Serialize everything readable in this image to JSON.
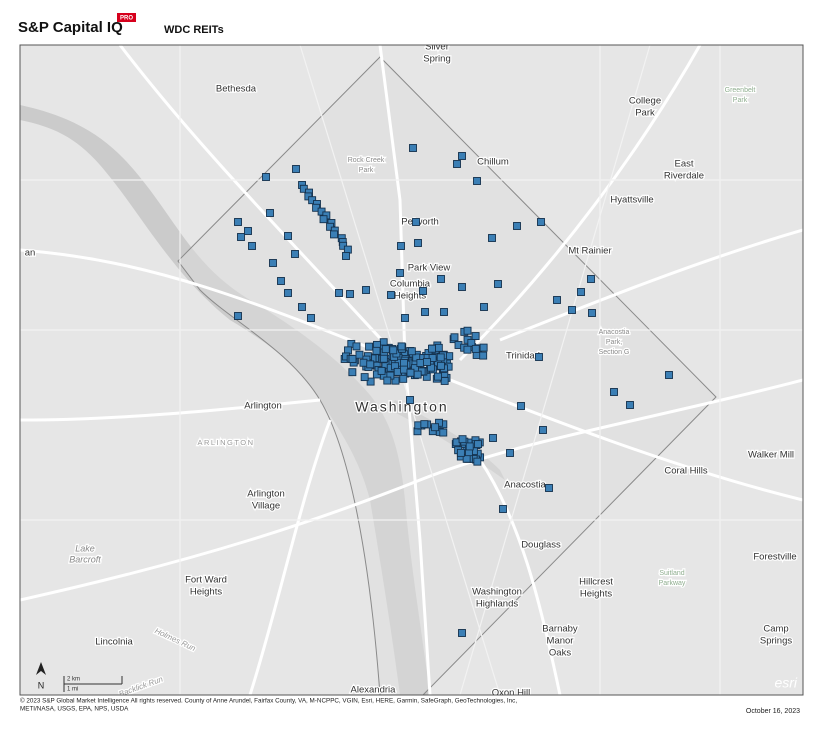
{
  "header": {
    "brand": "S&P Capital IQ",
    "badge": "PRO",
    "title": "WDC REITs"
  },
  "map": {
    "labels": [
      {
        "lines": [
          "Silver",
          "Spring"
        ]
      },
      {
        "lines": [
          "Bethesda"
        ]
      },
      {
        "lines": [
          "College",
          "Park"
        ]
      },
      {
        "lines": [
          "Greenbelt",
          "Park"
        ]
      },
      {
        "lines": [
          "Rock Creek",
          "Park"
        ]
      },
      {
        "lines": [
          "Chillum"
        ]
      },
      {
        "lines": [
          "East",
          "Riverdale"
        ]
      },
      {
        "lines": [
          "Hyattsville"
        ]
      },
      {
        "lines": [
          "Petworth"
        ]
      },
      {
        "lines": [
          "Mt Rainier"
        ]
      },
      {
        "lines": [
          "an"
        ]
      },
      {
        "lines": [
          "Park View"
        ]
      },
      {
        "lines": [
          "Columbia",
          "Heights"
        ]
      },
      {
        "lines": [
          "Anacostia",
          "Park,",
          "Section G"
        ]
      },
      {
        "lines": [
          "Trinidad"
        ]
      },
      {
        "lines": [
          "Arlington"
        ]
      },
      {
        "lines": [
          "Washington"
        ]
      },
      {
        "lines": [
          "ARLINGTON"
        ]
      },
      {
        "lines": [
          "Walker Mill"
        ]
      },
      {
        "lines": [
          "Coral Hills"
        ]
      },
      {
        "lines": [
          "Anacostia"
        ]
      },
      {
        "lines": [
          "Arlington",
          "Village"
        ]
      },
      {
        "lines": [
          "Douglass"
        ]
      },
      {
        "lines": [
          "Lake",
          "Barcroft"
        ]
      },
      {
        "lines": [
          "Forestville"
        ]
      },
      {
        "lines": [
          "Suitland",
          "Parkway"
        ]
      },
      {
        "lines": [
          "Fort Ward",
          "Heights"
        ]
      },
      {
        "lines": [
          "Hillcrest",
          "Heights"
        ]
      },
      {
        "lines": [
          "Washington",
          "Highlands"
        ]
      },
      {
        "lines": [
          "Barnaby",
          "Manor",
          "Oaks"
        ]
      },
      {
        "lines": [
          "Camp",
          "Springs"
        ]
      },
      {
        "lines": [
          "Lincolnia"
        ]
      },
      {
        "lines": [
          "Holmes Run"
        ]
      },
      {
        "lines": [
          "Backlick Run"
        ]
      },
      {
        "lines": [
          "Alexandria"
        ]
      },
      {
        "lines": [
          "Oxon Hill"
        ]
      }
    ],
    "north": "N",
    "scale": [
      "2 km",
      "1 mi"
    ],
    "esri": "esri"
  },
  "footer": {
    "credits": [
      "© 2023 S&P Global Market Intelligence All rights reserved. County of Anne Arundel, Fairfax County, VA, M-NCPPC, VGIN, Esri, HERE, Garmin, SafeGraph, GeoTechnologies, Inc,",
      "METI/NASA, USGS, EPA, NPS, USDA"
    ],
    "date": "October 16, 2023"
  }
}
